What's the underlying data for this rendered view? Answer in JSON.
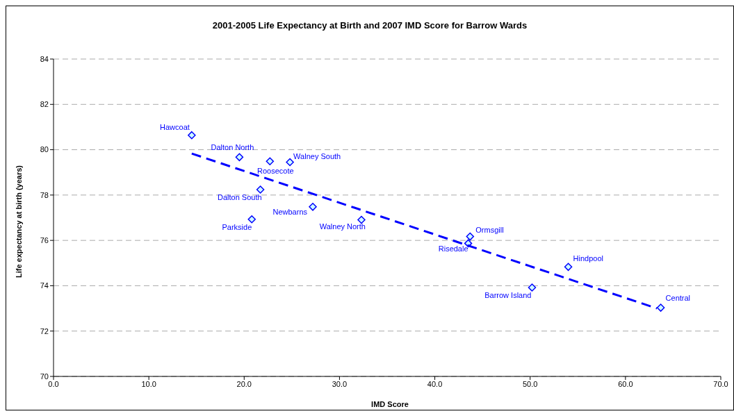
{
  "chart_data": {
    "type": "scatter",
    "title": "2001-2005 Life Expectancy at Birth and 2007 IMD Score for Barrow Wards",
    "xlabel": "IMD Score",
    "ylabel": "Life expectancy at birth (years)",
    "xlim": [
      0,
      70
    ],
    "xticks": [
      {
        "value": 0,
        "label": "0.0"
      },
      {
        "value": 10,
        "label": "10.0"
      },
      {
        "value": 20,
        "label": "20.0"
      },
      {
        "value": 30,
        "label": "30.0"
      },
      {
        "value": 40,
        "label": "40.0"
      },
      {
        "value": 50,
        "label": "50.0"
      },
      {
        "value": 60,
        "label": "60.0"
      },
      {
        "value": 70,
        "label": "70.0"
      }
    ],
    "ylim": [
      70,
      84
    ],
    "yticks": [
      70,
      72,
      74,
      76,
      78,
      80,
      82,
      84
    ],
    "grid": "y",
    "legend": false,
    "marker": "diamond",
    "series": [
      {
        "color": "#0000ff",
        "x": [
          14.5,
          19.5,
          22.7,
          24.8,
          21.7,
          27.2,
          20.8,
          32.3,
          43.7,
          43.5,
          54.0,
          50.2,
          63.7
        ],
        "values": [
          80.64,
          79.67,
          79.49,
          79.45,
          78.24,
          77.48,
          76.93,
          76.91,
          76.17,
          75.87,
          74.83,
          73.92,
          73.03
        ]
      },
      {
        "type": "line",
        "color": "#0000ff",
        "line_style": "dashed",
        "marker": "none",
        "x": [
          14.5,
          63.3
        ],
        "values": [
          79.83,
          73.0
        ]
      }
    ],
    "annotations": [
      {
        "text": "Hawcoat",
        "x": 14.5,
        "y": 80.64
      },
      {
        "text": "Dalton North",
        "x": 19.5,
        "y": 79.67
      },
      {
        "text": "Roosecote",
        "x": 22.7,
        "y": 79.49
      },
      {
        "text": "Walney South",
        "x": 24.8,
        "y": 79.45
      },
      {
        "text": "Dalton South",
        "x": 21.7,
        "y": 78.24
      },
      {
        "text": "Newbarns",
        "x": 27.2,
        "y": 77.48
      },
      {
        "text": "Parkside",
        "x": 20.8,
        "y": 76.93
      },
      {
        "text": "Walney North",
        "x": 32.3,
        "y": 76.91
      },
      {
        "text": "Ormsgill",
        "x": 43.7,
        "y": 76.17
      },
      {
        "text": "Risedale",
        "x": 43.5,
        "y": 75.87
      },
      {
        "text": "Hindpool",
        "x": 54.0,
        "y": 74.83
      },
      {
        "text": "Barrow Island",
        "x": 50.2,
        "y": 73.92
      },
      {
        "text": "Central",
        "x": 63.7,
        "y": 73.03
      }
    ]
  }
}
